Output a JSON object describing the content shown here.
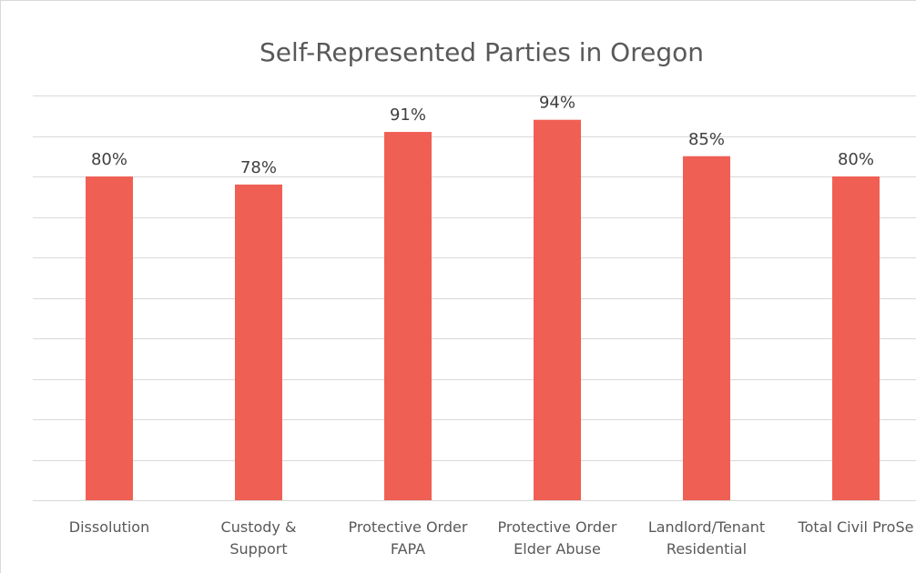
{
  "chart_data": {
    "type": "bar",
    "title": "Self-Represented Parties in Oregon",
    "categories": [
      "Dissolution",
      "Custody & Support",
      "Protective Order FAPA",
      "Protective Order Elder Abuse",
      "Landlord/Tenant Residential",
      "Total Civil ProSe"
    ],
    "category_lines": [
      [
        "Dissolution"
      ],
      [
        "Custody &",
        "Support"
      ],
      [
        "Protective Order",
        "FAPA"
      ],
      [
        "Protective Order",
        "Elder Abuse"
      ],
      [
        "Landlord/Tenant",
        "Residential"
      ],
      [
        "Total Civil ProSe"
      ]
    ],
    "values": [
      80,
      78,
      91,
      94,
      85,
      80
    ],
    "data_labels": [
      "80%",
      "78%",
      "91%",
      "94%",
      "85%",
      "80%"
    ],
    "unit": "%",
    "ylim": [
      0,
      100
    ],
    "y_axis_labels_visible": false,
    "grid": true,
    "legend": "none",
    "bar_color": "#f05f54"
  }
}
